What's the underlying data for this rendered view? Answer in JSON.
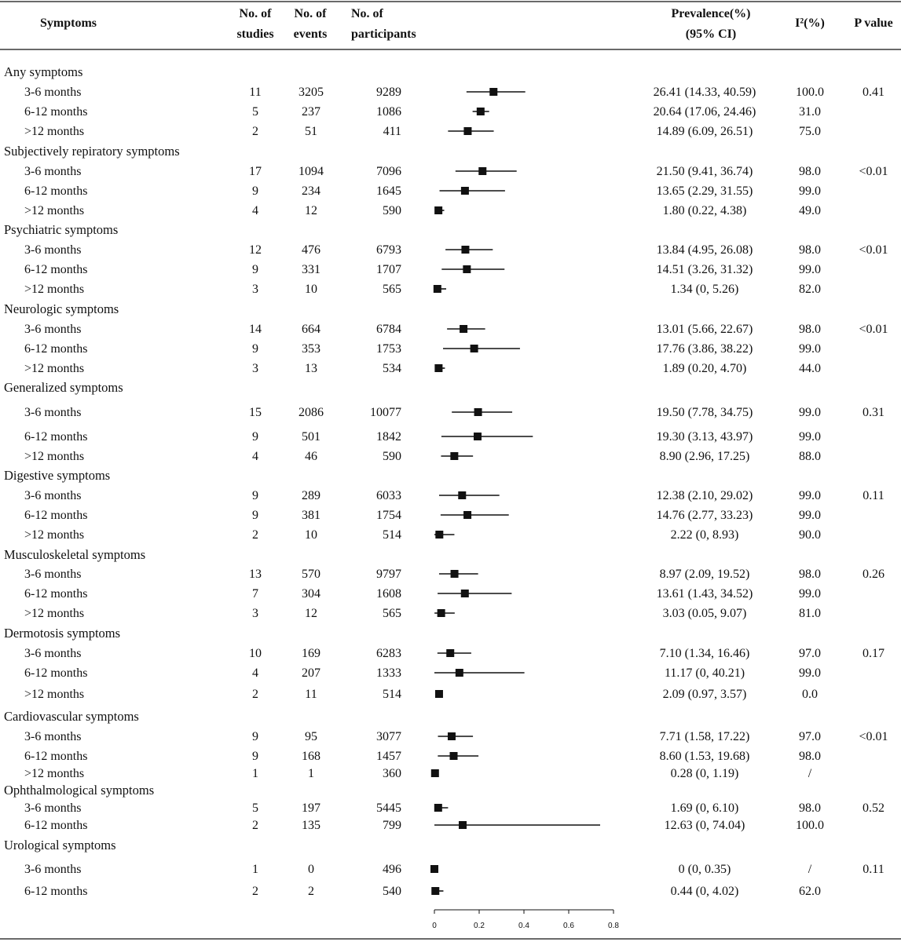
{
  "header": {
    "symptoms": "Symptoms",
    "studies": [
      "No. of",
      "studies"
    ],
    "events": [
      "No. of",
      "events"
    ],
    "participants": [
      "No. of",
      "participants"
    ],
    "prevalence": [
      "Prevalence(%)",
      "(95% CI)"
    ],
    "i2": "I²(%)",
    "pvalue": "P value"
  },
  "groups": [
    {
      "name": "Any symptoms",
      "p": "0.41",
      "rows": [
        {
          "period": "3-6 months",
          "studies": "11",
          "events": "3205",
          "participants": "9289",
          "prevalence": "26.41 (14.33, 40.59)",
          "i2": "100.0",
          "est": 26.41,
          "lo": 14.33,
          "hi": 40.59
        },
        {
          "period": "6-12 months",
          "studies": "5",
          "events": "237",
          "participants": "1086",
          "prevalence": "20.64 (17.06, 24.46)",
          "i2": "31.0",
          "est": 20.64,
          "lo": 17.06,
          "hi": 24.46
        },
        {
          "period": ">12 months",
          "studies": "2",
          "events": "51",
          "participants": "411",
          "prevalence": "14.89 (6.09, 26.51)",
          "i2": "75.0",
          "est": 14.89,
          "lo": 6.09,
          "hi": 26.51
        }
      ]
    },
    {
      "name": "Subjectively repiratory symptoms",
      "p": "<0.01",
      "rows": [
        {
          "period": "3-6 months",
          "studies": "17",
          "events": "1094",
          "participants": "7096",
          "prevalence": "21.50 (9.41,  36.74)",
          "i2": "98.0",
          "est": 21.5,
          "lo": 9.41,
          "hi": 36.74
        },
        {
          "period": "6-12 months",
          "studies": "9",
          "events": "234",
          "participants": "1645",
          "prevalence": "13.65 (2.29,  31.55)",
          "i2": "99.0",
          "est": 13.65,
          "lo": 2.29,
          "hi": 31.55
        },
        {
          "period": ">12 months",
          "studies": "4",
          "events": "12",
          "participants": "590",
          "prevalence": "1.80 (0.22, 4.38)",
          "i2": "49.0",
          "est": 1.8,
          "lo": 0.22,
          "hi": 4.38
        }
      ]
    },
    {
      "name": "Psychiatric symptoms",
      "p": "<0.01",
      "rows": [
        {
          "period": "3-6 months",
          "studies": "12",
          "events": "476",
          "participants": "6793",
          "prevalence": "13.84 (4.95,  26.08)",
          "i2": "98.0",
          "est": 13.84,
          "lo": 4.95,
          "hi": 26.08
        },
        {
          "period": "6-12 months",
          "studies": "9",
          "events": "331",
          "participants": "1707",
          "prevalence": "14.51 (3.26,  31.32)",
          "i2": "99.0",
          "est": 14.51,
          "lo": 3.26,
          "hi": 31.32
        },
        {
          "period": ">12 months",
          "studies": "3",
          "events": "10",
          "participants": "565",
          "prevalence": "1.34 (0, 5.26)",
          "i2": "82.0",
          "est": 1.34,
          "lo": 0,
          "hi": 5.26
        }
      ]
    },
    {
      "name": "Neurologic symptoms",
      "p": "<0.01",
      "rows": [
        {
          "period": "3-6 months",
          "studies": "14",
          "events": "664",
          "participants": "6784",
          "prevalence": "13.01 (5.66, 22.67)",
          "i2": "98.0",
          "est": 13.01,
          "lo": 5.66,
          "hi": 22.67
        },
        {
          "period": "6-12 months",
          "studies": "9",
          "events": "353",
          "participants": "1753",
          "prevalence": "17.76 (3.86, 38.22)",
          "i2": "99.0",
          "est": 17.76,
          "lo": 3.86,
          "hi": 38.22
        },
        {
          "period": ">12 months",
          "studies": "3",
          "events": "13",
          "participants": "534",
          "prevalence": "1.89 (0.20, 4.70)",
          "i2": "44.0",
          "est": 1.89,
          "lo": 0.2,
          "hi": 4.7
        }
      ]
    },
    {
      "name": "Generalized symptoms",
      "p": "0.31",
      "rows": [
        {
          "period": "3-6 months",
          "studies": "15",
          "events": "2086",
          "participants": "10077",
          "prevalence": "19.50 (7.78, 34.75)",
          "i2": "99.0",
          "est": 19.5,
          "lo": 7.78,
          "hi": 34.75
        },
        {
          "period": "6-12 months",
          "studies": "9",
          "events": "501",
          "participants": "1842",
          "prevalence": "19.30 (3.13, 43.97)",
          "i2": "99.0",
          "est": 19.3,
          "lo": 3.13,
          "hi": 43.97
        },
        {
          "period": ">12 months",
          "studies": "4",
          "events": "46",
          "participants": "590",
          "prevalence": "8.90 (2.96, 17.25)",
          "i2": "88.0",
          "est": 8.9,
          "lo": 2.96,
          "hi": 17.25
        }
      ]
    },
    {
      "name": "Digestive symptoms",
      "p": "0.11",
      "rows": [
        {
          "period": "3-6 months",
          "studies": "9",
          "events": "289",
          "participants": "6033",
          "prevalence": "12.38 (2.10, 29.02)",
          "i2": "99.0",
          "est": 12.38,
          "lo": 2.1,
          "hi": 29.02
        },
        {
          "period": "6-12 months",
          "studies": "9",
          "events": "381",
          "participants": "1754",
          "prevalence": "14.76 (2.77, 33.23)",
          "i2": "99.0",
          "est": 14.76,
          "lo": 2.77,
          "hi": 33.23
        },
        {
          "period": ">12 months",
          "studies": "2",
          "events": "10",
          "participants": "514",
          "prevalence": "2.22 (0, 8.93)",
          "i2": "90.0",
          "est": 2.22,
          "lo": 0,
          "hi": 8.93
        }
      ]
    },
    {
      "name": "Musculoskeletal symptoms",
      "p": "0.26",
      "rows": [
        {
          "period": "3-6 months",
          "studies": "13",
          "events": "570",
          "participants": "9797",
          "prevalence": "8.97 (2.09, 19.52)",
          "i2": "98.0",
          "est": 8.97,
          "lo": 2.09,
          "hi": 19.52
        },
        {
          "period": "6-12 months",
          "studies": "7",
          "events": "304",
          "participants": "1608",
          "prevalence": "13.61 (1.43, 34.52)",
          "i2": "99.0",
          "est": 13.61,
          "lo": 1.43,
          "hi": 34.52
        },
        {
          "period": ">12 months",
          "studies": "3",
          "events": "12",
          "participants": "565",
          "prevalence": "3.03 (0.05, 9.07)",
          "i2": "81.0",
          "est": 3.03,
          "lo": 0.05,
          "hi": 9.07
        }
      ]
    },
    {
      "name": "Dermotosis symptoms",
      "p": "0.17",
      "rows": [
        {
          "period": "3-6 months",
          "studies": "10",
          "events": "169",
          "participants": "6283",
          "prevalence": "7.10 (1.34, 16.46)",
          "i2": "97.0",
          "est": 7.1,
          "lo": 1.34,
          "hi": 16.46
        },
        {
          "period": "6-12 months",
          "studies": "4",
          "events": "207",
          "participants": "1333",
          "prevalence": "11.17 (0, 40.21)",
          "i2": "99.0",
          "est": 11.17,
          "lo": 0,
          "hi": 40.21
        },
        {
          "period": ">12 months",
          "studies": "2",
          "events": "11",
          "participants": "514",
          "prevalence": "2.09 (0.97, 3.57)",
          "i2": "0.0",
          "est": 2.09,
          "lo": 0.97,
          "hi": 3.57
        }
      ]
    },
    {
      "name": "Cardiovascular symptoms",
      "p": "<0.01",
      "rows": [
        {
          "period": "3-6 months",
          "studies": "9",
          "events": "95",
          "participants": "3077",
          "prevalence": "7.71 (1.58, 17.22)",
          "i2": "97.0",
          "est": 7.71,
          "lo": 1.58,
          "hi": 17.22
        },
        {
          "period": "6-12 months",
          "studies": "9",
          "events": "168",
          "participants": "1457",
          "prevalence": "8.60 (1.53, 19.68)",
          "i2": "98.0",
          "est": 8.6,
          "lo": 1.53,
          "hi": 19.68
        },
        {
          "period": ">12 months",
          "studies": "1",
          "events": "1",
          "participants": "360",
          "prevalence": "0.28 (0, 1.19)",
          "i2": "/",
          "est": 0.28,
          "lo": 0,
          "hi": 1.19
        }
      ]
    },
    {
      "name": "Ophthalmological symptoms",
      "p": "0.52",
      "rows": [
        {
          "period": "3-6 months",
          "studies": "5",
          "events": "197",
          "participants": "5445",
          "prevalence": "1.69 (0, 6.10)",
          "i2": "98.0",
          "est": 1.69,
          "lo": 0,
          "hi": 6.1
        },
        {
          "period": "6-12 months",
          "studies": "2",
          "events": "135",
          "participants": "799",
          "prevalence": "12.63 (0, 74.04)",
          "i2": "100.0",
          "est": 12.63,
          "lo": 0,
          "hi": 74.04
        }
      ]
    },
    {
      "name": "Urological symptoms",
      "p": "0.11",
      "rows": [
        {
          "period": "3-6 months",
          "studies": "1",
          "events": "0",
          "participants": "496",
          "prevalence": "0 (0, 0.35)",
          "i2": "/",
          "est": 0,
          "lo": 0,
          "hi": 0.35
        },
        {
          "period": "6-12 months",
          "studies": "2",
          "events": "2",
          "participants": "540",
          "prevalence": "0.44 (0, 4.02)",
          "i2": "62.0",
          "est": 0.44,
          "lo": 0,
          "hi": 4.02
        }
      ]
    }
  ],
  "chart_data": {
    "type": "forest",
    "xlabel": "",
    "xlim": [
      0,
      0.8
    ],
    "xticks": [
      "0",
      "0.2",
      "0.4",
      "0.6",
      "0.8"
    ],
    "note": "Point estimates and 95% CI of pooled prevalence (proportion scale) per symptom group and follow-up period; values listed in groups[].rows[] (est, lo, hi in percent)."
  }
}
